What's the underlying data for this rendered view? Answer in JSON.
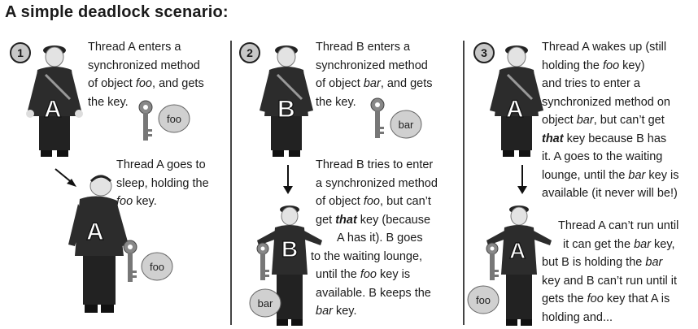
{
  "title": "A simple deadlock scenario:",
  "panels": [
    {
      "number": "1",
      "top_text": [
        "Thread A enters a",
        "synchronized method",
        "of object foo, and gets",
        "the key."
      ],
      "person_label": "A",
      "key_label": "foo",
      "bottom_text": [
        "Thread A goes to",
        "sleep, holding the",
        "foo key."
      ],
      "bottom_person_label": "A",
      "bottom_key_label": "foo"
    },
    {
      "number": "2",
      "top_text": [
        "Thread B enters a",
        "synchronized method",
        "of object bar, and gets",
        "the key."
      ],
      "person_label": "B",
      "key_label": "bar",
      "bottom_text": [
        "Thread B tries to enter",
        "a synchronized method",
        "of object foo, but can’t",
        "get that key (because",
        "A has it). B goes",
        "to the waiting lounge,",
        "until the foo key is",
        "available. B keeps the",
        "bar key."
      ],
      "bottom_person_label": "B",
      "bottom_key_label": "bar"
    },
    {
      "number": "3",
      "top_text": [
        "Thread A wakes up (still",
        "holding the foo key)",
        "and tries to enter a",
        "synchronized method on",
        "object bar, but can’t get",
        "that key because B has",
        "it. A goes to the waiting",
        "lounge, until the bar key is",
        "available (it never will be!)"
      ],
      "person_label": "A",
      "bottom_text": [
        "Thread A can’t run until",
        "it can get the bar key,",
        "but B is holding the bar",
        "key and B can’t run until it",
        "gets the foo key that A is",
        "holding and..."
      ],
      "bottom_person_label": "A",
      "bottom_key_label": "foo"
    }
  ]
}
